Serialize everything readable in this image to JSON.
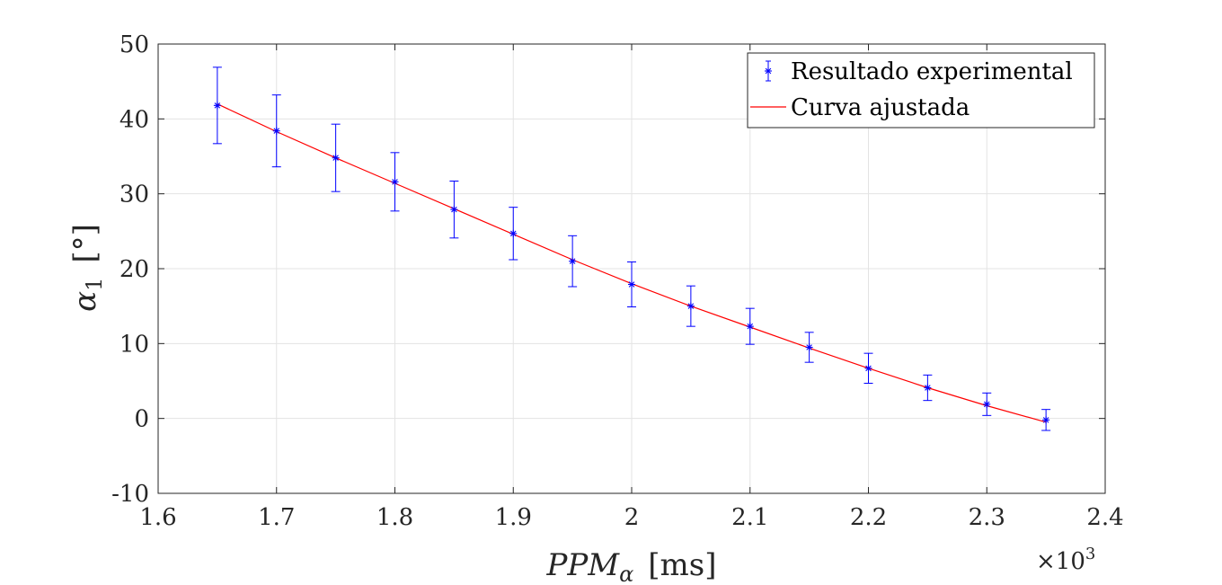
{
  "chart_data": {
    "type": "scatter",
    "x": [
      1650,
      1700,
      1750,
      1800,
      1850,
      1900,
      1950,
      2000,
      2050,
      2100,
      2150,
      2200,
      2250,
      2300,
      2350
    ],
    "series": [
      {
        "name": "Resultado experimental",
        "kind": "errorbar",
        "marker": "asterisk",
        "color": "#0000ff",
        "values": [
          41.8,
          38.4,
          34.8,
          31.6,
          27.9,
          24.7,
          21.0,
          17.9,
          15.0,
          12.3,
          9.5,
          6.7,
          4.1,
          1.9,
          -0.2
        ],
        "errors": [
          5.1,
          4.8,
          4.5,
          3.9,
          3.8,
          3.5,
          3.4,
          3.0,
          2.7,
          2.4,
          2.0,
          2.0,
          1.7,
          1.5,
          1.4
        ]
      },
      {
        "name": "Curva ajustada",
        "kind": "line",
        "color": "#ff0000",
        "values": [
          42.0,
          38.3,
          34.8,
          31.4,
          28.0,
          24.6,
          21.2,
          18.0,
          15.0,
          12.2,
          9.4,
          6.7,
          4.1,
          1.7,
          -0.5
        ]
      }
    ],
    "xlabel_main": "PPM",
    "xlabel_sub": "α",
    "xlabel_unit": "[ms]",
    "ylabel_main": "α",
    "ylabel_sub": "1",
    "ylabel_unit": "[°]",
    "xlim": [
      1600,
      2400
    ],
    "ylim": [
      -10,
      50
    ],
    "x_ticks": [
      1600,
      1700,
      1800,
      1900,
      2000,
      2100,
      2200,
      2300,
      2400
    ],
    "x_tick_labels": [
      "1.6",
      "1.7",
      "1.8",
      "1.9",
      "2",
      "2.1",
      "2.2",
      "2.3",
      "2.4"
    ],
    "y_ticks": [
      -10,
      0,
      10,
      20,
      30,
      40,
      50
    ],
    "y_tick_labels": [
      "-10",
      "0",
      "10",
      "20",
      "30",
      "40",
      "50"
    ],
    "x_exponent_prefix": "×10",
    "x_exponent_power": "3",
    "grid": true,
    "legend_position": "top-right"
  }
}
